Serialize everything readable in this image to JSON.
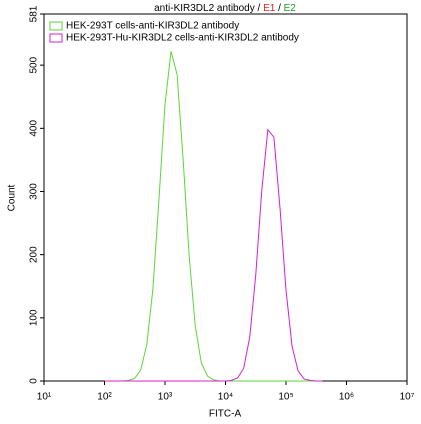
{
  "chart_data": {
    "type": "line",
    "title_parts": [
      {
        "text": "anti-KIR3DL2 antibody / ",
        "color": "#000000"
      },
      {
        "text": "E1",
        "color": "#e02020"
      },
      {
        "text": " / ",
        "color": "#000000"
      },
      {
        "text": "E2",
        "color": "#1a9e1a"
      }
    ],
    "x_label": "FITC-A",
    "y_label": "Count",
    "x_log": true,
    "x": [
      100,
      126,
      158,
      200,
      251,
      316,
      398,
      501,
      631,
      794,
      1000,
      1259,
      1585,
      1995,
      2512,
      3162,
      3981,
      5012,
      6310,
      7943,
      10000,
      12589,
      15849,
      19953,
      25119,
      31623,
      39811,
      50119,
      63096,
      79433,
      100000,
      125893,
      158489,
      199526,
      251189,
      316228,
      398107
    ],
    "series": [
      {
        "name": "HEK-293T cells-anti-KIR3DL2 antibody",
        "color": "#5cd63a",
        "values": [
          0,
          0,
          0,
          0,
          1,
          4,
          18,
          58,
          146,
          287,
          438,
          522,
          485,
          350,
          197,
          87,
          29,
          8,
          2,
          0,
          0,
          0,
          0,
          0,
          0,
          0,
          0,
          0,
          0,
          0,
          0,
          0,
          0,
          0,
          0,
          0,
          0
        ]
      },
      {
        "name": "HEK-293T-Hu-KIR3DL2 cells-anti-KIR3DL2 antibody",
        "color": "#d41fd4",
        "values": [
          0,
          0,
          0,
          0,
          0,
          0,
          0,
          0,
          0,
          0,
          0,
          0,
          0,
          0,
          0,
          0,
          0,
          0,
          0,
          0,
          0,
          1,
          5,
          20,
          69,
          168,
          302,
          398,
          386,
          275,
          144,
          55,
          16,
          3,
          1,
          0,
          0
        ]
      }
    ],
    "xlim": [
      10,
      10000000
    ],
    "xticks": [
      {
        "value": 10,
        "label": "10¹"
      },
      {
        "value": 100,
        "label": "10²"
      },
      {
        "value": 1000,
        "label": "10³"
      },
      {
        "value": 10000,
        "label": "10⁴"
      },
      {
        "value": 100000,
        "label": "10⁵"
      },
      {
        "value": 1000000,
        "label": "10⁶"
      },
      {
        "value": 10000000,
        "label": "10⁷"
      }
    ],
    "ylim": [
      0,
      581
    ],
    "yticks": [
      0,
      100,
      200,
      300,
      400,
      500,
      581
    ],
    "legend": "top-left"
  }
}
